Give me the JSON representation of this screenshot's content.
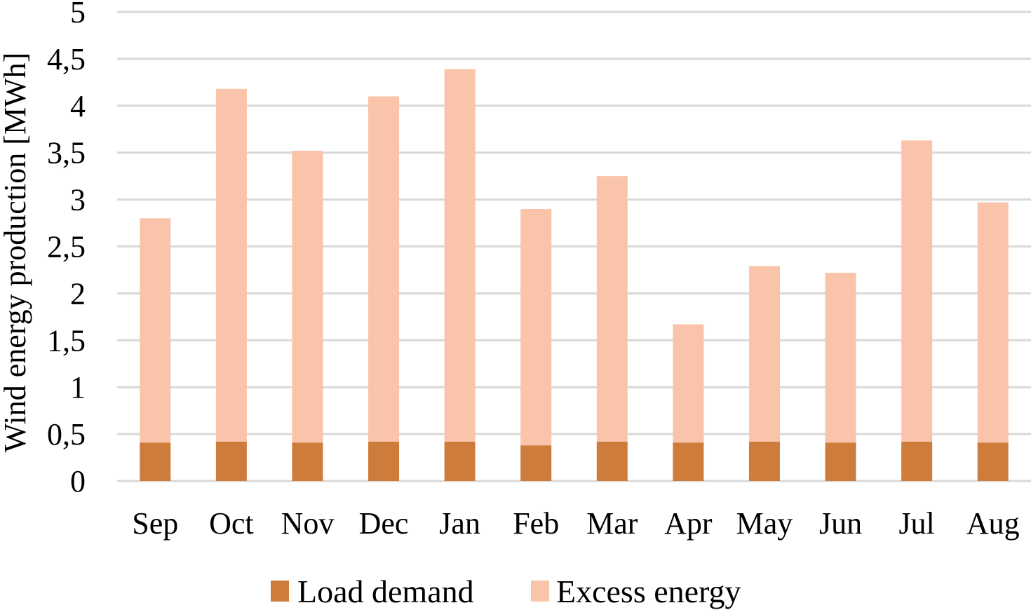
{
  "chart_data": {
    "type": "bar",
    "stacked": true,
    "title": "",
    "xlabel": "",
    "ylabel": "Wind energy production [MWh]",
    "ylim": [
      0,
      5
    ],
    "yticks": [
      0,
      0.5,
      1,
      1.5,
      2,
      2.5,
      3,
      3.5,
      4,
      4.5,
      5
    ],
    "ytick_labels": [
      "0",
      "0,5",
      "1",
      "1,5",
      "2",
      "2,5",
      "3",
      "3,5",
      "4",
      "4,5",
      "5"
    ],
    "grid": true,
    "legend_position": "bottom",
    "categories": [
      "Sep",
      "Oct",
      "Nov",
      "Dec",
      "Jan",
      "Feb",
      "Mar",
      "Apr",
      "May",
      "Jun",
      "Jul",
      "Aug"
    ],
    "series": [
      {
        "name": "Load demand",
        "color": "#CD7C3C",
        "values": [
          0.41,
          0.42,
          0.41,
          0.42,
          0.42,
          0.38,
          0.42,
          0.41,
          0.42,
          0.41,
          0.42,
          0.41
        ]
      },
      {
        "name": "Excess energy",
        "color": "#F9C4A9",
        "values": [
          2.39,
          3.76,
          3.11,
          3.68,
          3.97,
          2.52,
          2.83,
          1.26,
          1.87,
          1.81,
          3.21,
          2.56
        ]
      }
    ]
  }
}
